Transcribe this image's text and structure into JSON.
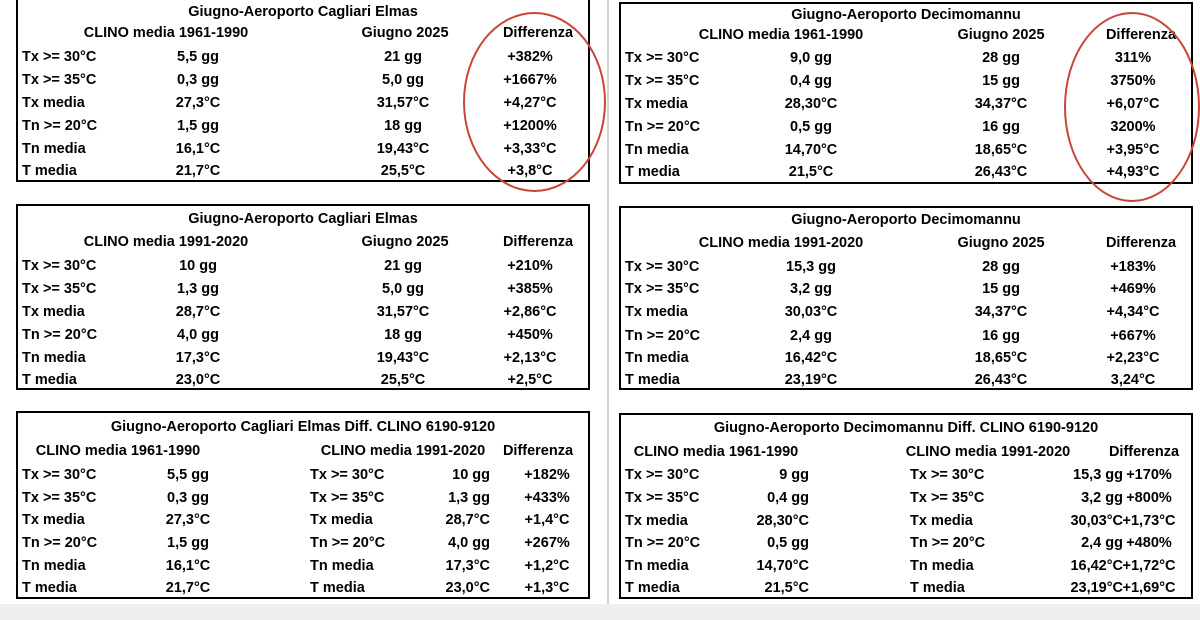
{
  "tables": [
    {
      "title": "Giugno-Aeroporto Cagliari Elmas",
      "headers": [
        "CLINO media 1961-1990",
        "Giugno 2025",
        "Differenza"
      ],
      "rows": [
        [
          "Tx >= 30°C",
          "5,5 gg",
          "21 gg",
          "+382%"
        ],
        [
          "Tx >= 35°C",
          "0,3 gg",
          "5,0 gg",
          "+1667%"
        ],
        [
          "Tx media",
          "27,3°C",
          "31,57°C",
          "+4,27°C"
        ],
        [
          "Tn >= 20°C",
          "1,5 gg",
          "18 gg",
          "+1200%"
        ],
        [
          "Tn media",
          "16,1°C",
          "19,43°C",
          "+3,33°C"
        ],
        [
          "T media",
          "21,7°C",
          "25,5°C",
          "+3,8°C"
        ]
      ]
    },
    {
      "title": "Giugno-Aeroporto Decimomannu",
      "headers": [
        "CLINO media 1961-1990",
        "Giugno 2025",
        "Differenza"
      ],
      "rows": [
        [
          "Tx >= 30°C",
          "9,0 gg",
          "28 gg",
          "311%"
        ],
        [
          "Tx >= 35°C",
          "0,4 gg",
          "15 gg",
          "3750%"
        ],
        [
          "Tx media",
          "28,30°C",
          "34,37°C",
          "+6,07°C"
        ],
        [
          "Tn >= 20°C",
          "0,5 gg",
          "16 gg",
          "3200%"
        ],
        [
          "Tn media",
          "14,70°C",
          "18,65°C",
          "+3,95°C"
        ],
        [
          "T media",
          "21,5°C",
          "26,43°C",
          "+4,93°C"
        ]
      ]
    },
    {
      "title": "Giugno-Aeroporto Cagliari Elmas",
      "headers": [
        "CLINO media 1991-2020",
        "Giugno 2025",
        "Differenza"
      ],
      "rows": [
        [
          "Tx >= 30°C",
          "10 gg",
          "21 gg",
          "+210%"
        ],
        [
          "Tx >= 35°C",
          "1,3 gg",
          "5,0 gg",
          "+385%"
        ],
        [
          "Tx media",
          "28,7°C",
          "31,57°C",
          "+2,86°C"
        ],
        [
          "Tn >= 20°C",
          "4,0 gg",
          "18 gg",
          "+450%"
        ],
        [
          "Tn media",
          "17,3°C",
          "19,43°C",
          "+2,13°C"
        ],
        [
          "T media",
          "23,0°C",
          "25,5°C",
          "+2,5°C"
        ]
      ]
    },
    {
      "title": "Giugno-Aeroporto Decimomannu",
      "headers": [
        "CLINO media 1991-2020",
        "Giugno 2025",
        "Differenza"
      ],
      "rows": [
        [
          "Tx >= 30°C",
          "15,3 gg",
          "28 gg",
          "+183%"
        ],
        [
          "Tx >= 35°C",
          "3,2 gg",
          "15 gg",
          "+469%"
        ],
        [
          "Tx media",
          "30,03°C",
          "34,37°C",
          "+4,34°C"
        ],
        [
          "Tn >= 20°C",
          "2,4 gg",
          "16 gg",
          "+667%"
        ],
        [
          "Tn media",
          "16,42°C",
          "18,65°C",
          "+2,23°C"
        ],
        [
          "T media",
          "23,19°C",
          "26,43°C",
          "3,24°C"
        ]
      ]
    },
    {
      "title": "Giugno-Aeroporto Cagliari Elmas Diff. CLINO 6190-9120",
      "headers": [
        "CLINO media 1961-1990",
        "CLINO media 1991-2020",
        "Differenza"
      ],
      "rows": [
        [
          "Tx >= 30°C",
          "5,5 gg",
          "Tx >= 30°C",
          "10 gg",
          "+182%"
        ],
        [
          "Tx >= 35°C",
          "0,3 gg",
          "Tx >= 35°C",
          "1,3 gg",
          "+433%"
        ],
        [
          "Tx media",
          "27,3°C",
          "Tx media",
          "28,7°C",
          "+1,4°C"
        ],
        [
          "Tn >= 20°C",
          "1,5 gg",
          "Tn >= 20°C",
          "4,0 gg",
          "+267%"
        ],
        [
          "Tn media",
          "16,1°C",
          "Tn media",
          "17,3°C",
          "+1,2°C"
        ],
        [
          "T media",
          "21,7°C",
          "T media",
          "23,0°C",
          "+1,3°C"
        ]
      ]
    },
    {
      "title": "Giugno-Aeroporto Decimomannu Diff. CLINO 6190-9120",
      "headers": [
        "CLINO media 1961-1990",
        "CLINO media 1991-2020",
        "Differenza"
      ],
      "rows": [
        [
          "Tx >= 30°C",
          "9 gg",
          "Tx >= 30°C",
          "15,3 gg",
          "+170%"
        ],
        [
          "Tx >= 35°C",
          "0,4 gg",
          "Tx >= 35°C",
          "3,2 gg",
          "+800%"
        ],
        [
          "Tx media",
          "28,30°C",
          "Tx media",
          "30,03°C",
          "+1,73°C"
        ],
        [
          "Tn >= 20°C",
          "0,5 gg",
          "Tn >= 20°C",
          "2,4 gg",
          "+480%"
        ],
        [
          "Tn media",
          "14,70°C",
          "Tn media",
          "16,42°C",
          "+1,72°C"
        ],
        [
          "T media",
          "21,5°C",
          "T media",
          "23,19°C",
          "+1,69°C"
        ]
      ]
    }
  ],
  "annotation_color": "#c8453a"
}
